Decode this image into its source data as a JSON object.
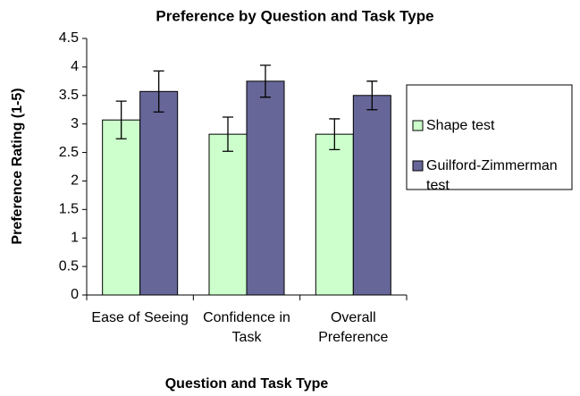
{
  "chart_data": {
    "type": "bar",
    "title": "Preference by Question and Task Type",
    "x_label": "Question and Task Type",
    "y_label": "Preference Rating (1-5)",
    "categories": [
      "Ease of Seeing",
      "Confidence in Task",
      "Overall Preference"
    ],
    "series": [
      {
        "name": "Shape test",
        "color": "#ccffcc",
        "values": [
          3.07,
          2.82,
          2.82
        ],
        "errors": [
          0.33,
          0.3,
          0.27
        ]
      },
      {
        "name": "Guilford-Zimmerman test",
        "color": "#666699",
        "values": [
          3.57,
          3.75,
          3.5
        ],
        "errors": [
          0.36,
          0.28,
          0.25
        ]
      }
    ],
    "ylim": [
      0,
      4.5
    ],
    "yticks": [
      0,
      0.5,
      1,
      1.5,
      2,
      2.5,
      3,
      3.5,
      4,
      4.5
    ],
    "legend": "right"
  }
}
